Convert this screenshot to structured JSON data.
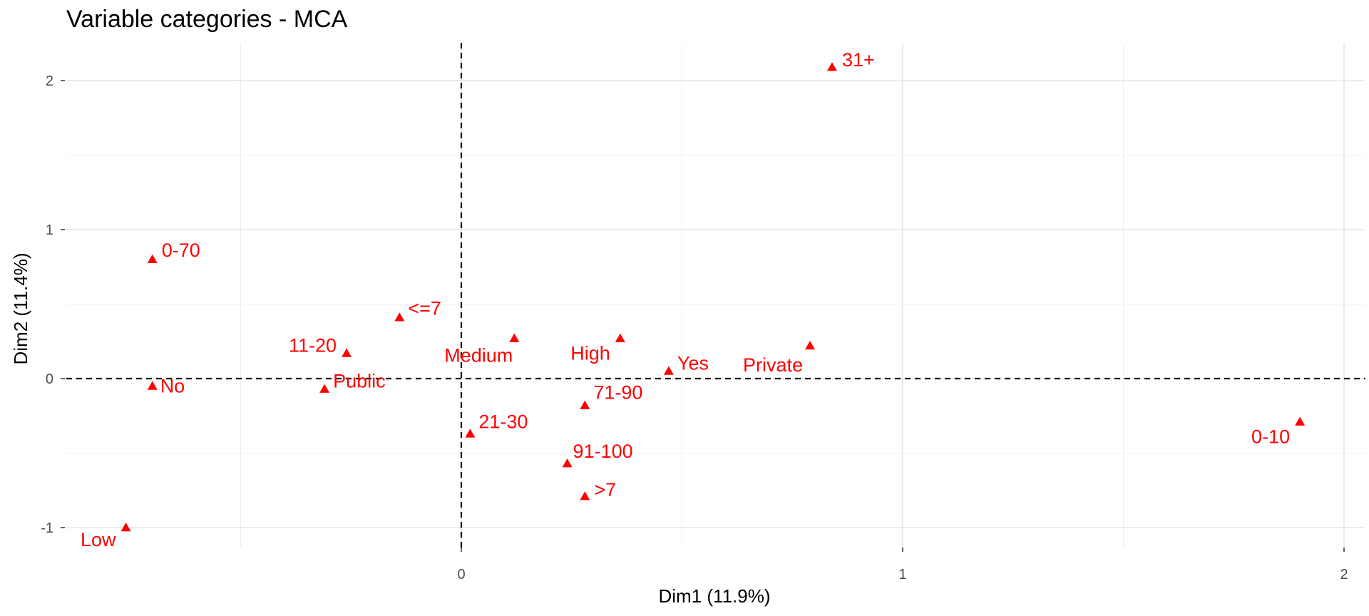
{
  "chart_data": {
    "type": "scatter",
    "title": "Variable categories - MCA",
    "xlabel": "Dim1 (11.9%)",
    "ylabel": "Dim2 (11.4%)",
    "xlim": [
      -0.9,
      2.05
    ],
    "ylim": [
      -1.2,
      2.25
    ],
    "xticks": [
      0,
      1,
      2
    ],
    "yticks": [
      -1,
      0,
      1,
      2
    ],
    "grid": true,
    "reference_lines": {
      "x": 0,
      "y": 0,
      "style": "dashed"
    },
    "marker": "triangle",
    "color": "#ff0000",
    "points": [
      {
        "label": "31+",
        "x": 0.84,
        "y": 2.09
      },
      {
        "label": "0-70",
        "x": -0.7,
        "y": 0.8
      },
      {
        "label": "<=7",
        "x": -0.14,
        "y": 0.41
      },
      {
        "label": "11-20",
        "x": -0.26,
        "y": 0.17
      },
      {
        "label": "Medium",
        "x": 0.12,
        "y": 0.27
      },
      {
        "label": "High",
        "x": 0.36,
        "y": 0.27
      },
      {
        "label": "Private",
        "x": 0.79,
        "y": 0.22
      },
      {
        "label": "Yes",
        "x": 0.47,
        "y": 0.05
      },
      {
        "label": "No",
        "x": -0.7,
        "y": -0.05
      },
      {
        "label": "Public",
        "x": -0.31,
        "y": -0.07
      },
      {
        "label": "71-90",
        "x": 0.28,
        "y": -0.18
      },
      {
        "label": "21-30",
        "x": 0.02,
        "y": -0.37
      },
      {
        "label": "0-10",
        "x": 1.9,
        "y": -0.29
      },
      {
        "label": "91-100",
        "x": 0.24,
        "y": -0.57
      },
      {
        "label": ">7",
        "x": 0.28,
        "y": -0.79
      },
      {
        "label": "Low",
        "x": -0.76,
        "y": -1.0
      }
    ]
  }
}
